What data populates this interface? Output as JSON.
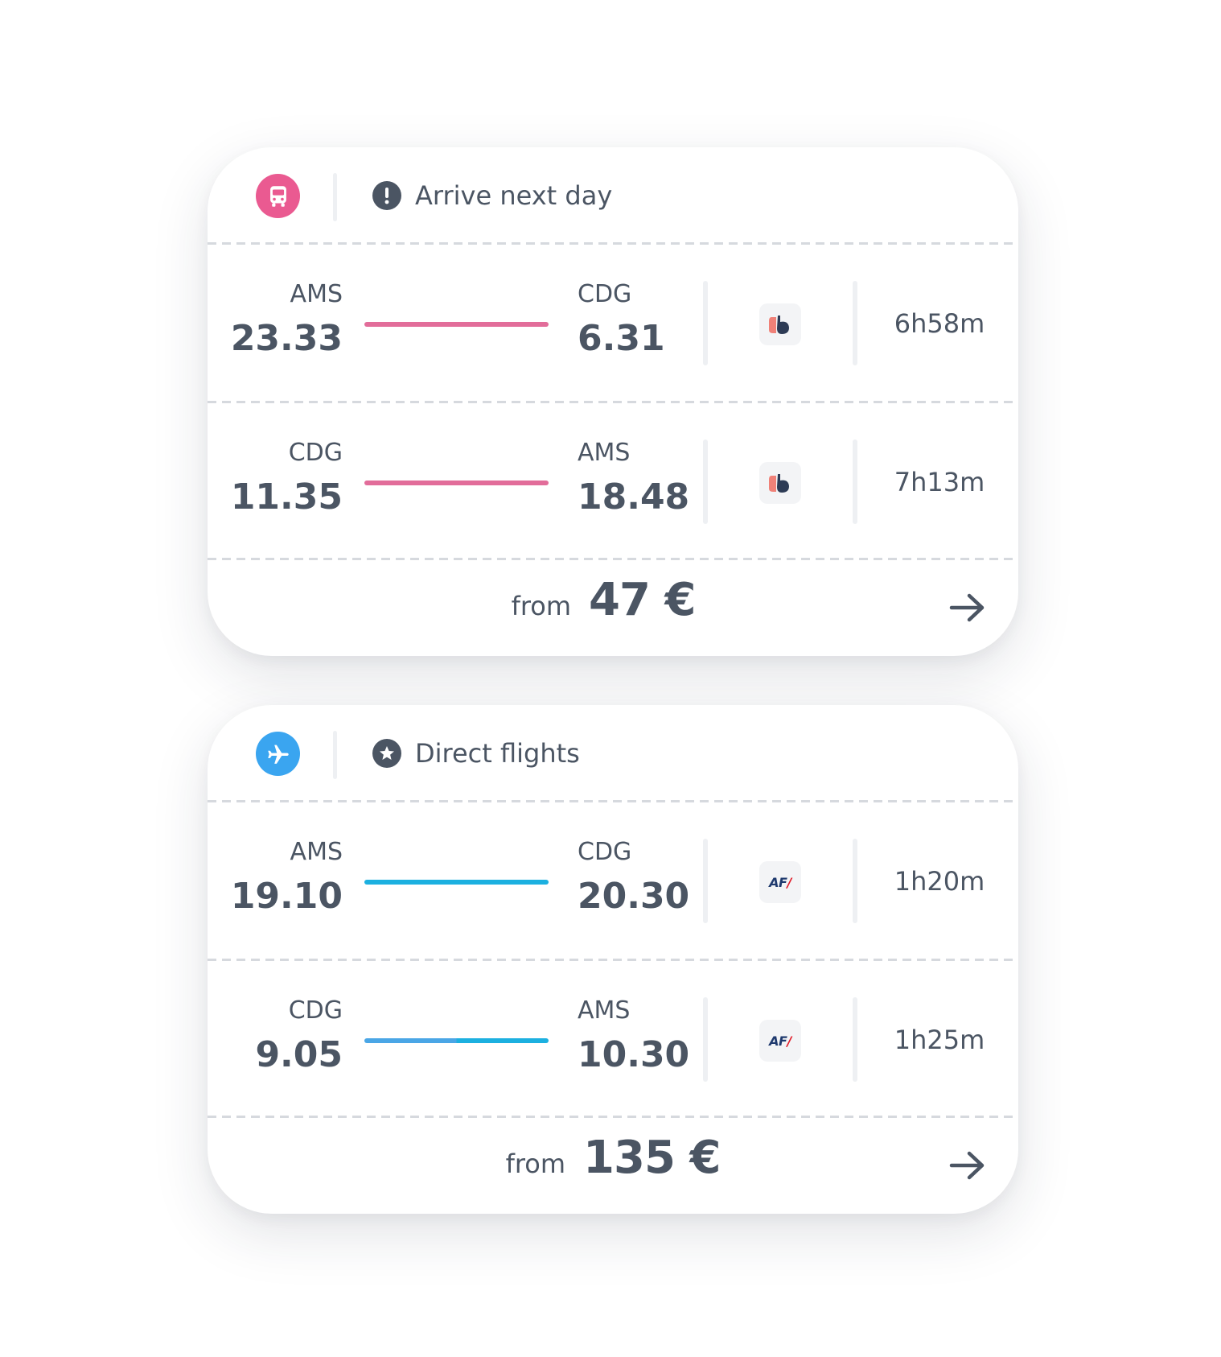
{
  "cards": [
    {
      "mode_icon": "bus-icon",
      "mode_color": "#ea5a91",
      "header_icon": "exclamation-icon",
      "header_text": "Arrive next day",
      "legs": [
        {
          "dep_code": "AMS",
          "dep_time": "23.33",
          "arr_code": "CDG",
          "arr_time": "6.31",
          "carrier_icon": "bus-carrier-logo-icon",
          "duration": "6h58m",
          "line_color": "#e26d9a"
        },
        {
          "dep_code": "CDG",
          "dep_time": "11.35",
          "arr_code": "AMS",
          "arr_time": "18.48",
          "carrier_icon": "bus-carrier-logo-icon",
          "duration": "7h13m",
          "line_color": "#e26d9a"
        }
      ],
      "from_label": "from",
      "price": "47 €"
    },
    {
      "mode_icon": "plane-icon",
      "mode_color": "#3aa5f0",
      "header_icon": "star-icon",
      "header_text": "Direct flights",
      "legs": [
        {
          "dep_code": "AMS",
          "dep_time": "19.10",
          "arr_code": "CDG",
          "arr_time": "20.30",
          "carrier_icon": "air-france-logo-icon",
          "carrier_text": "AF",
          "carrier_slash": "/",
          "duration": "1h20m",
          "line_color": "#1cb0e0"
        },
        {
          "dep_code": "CDG",
          "dep_time": "9.05",
          "arr_code": "AMS",
          "arr_time": "10.30",
          "carrier_icon": "air-france-logo-icon",
          "carrier_text": "AF",
          "carrier_slash": "/",
          "duration": "1h25m",
          "line_color": "#1cb0e0"
        }
      ],
      "from_label": "from",
      "price": "135 €"
    }
  ]
}
